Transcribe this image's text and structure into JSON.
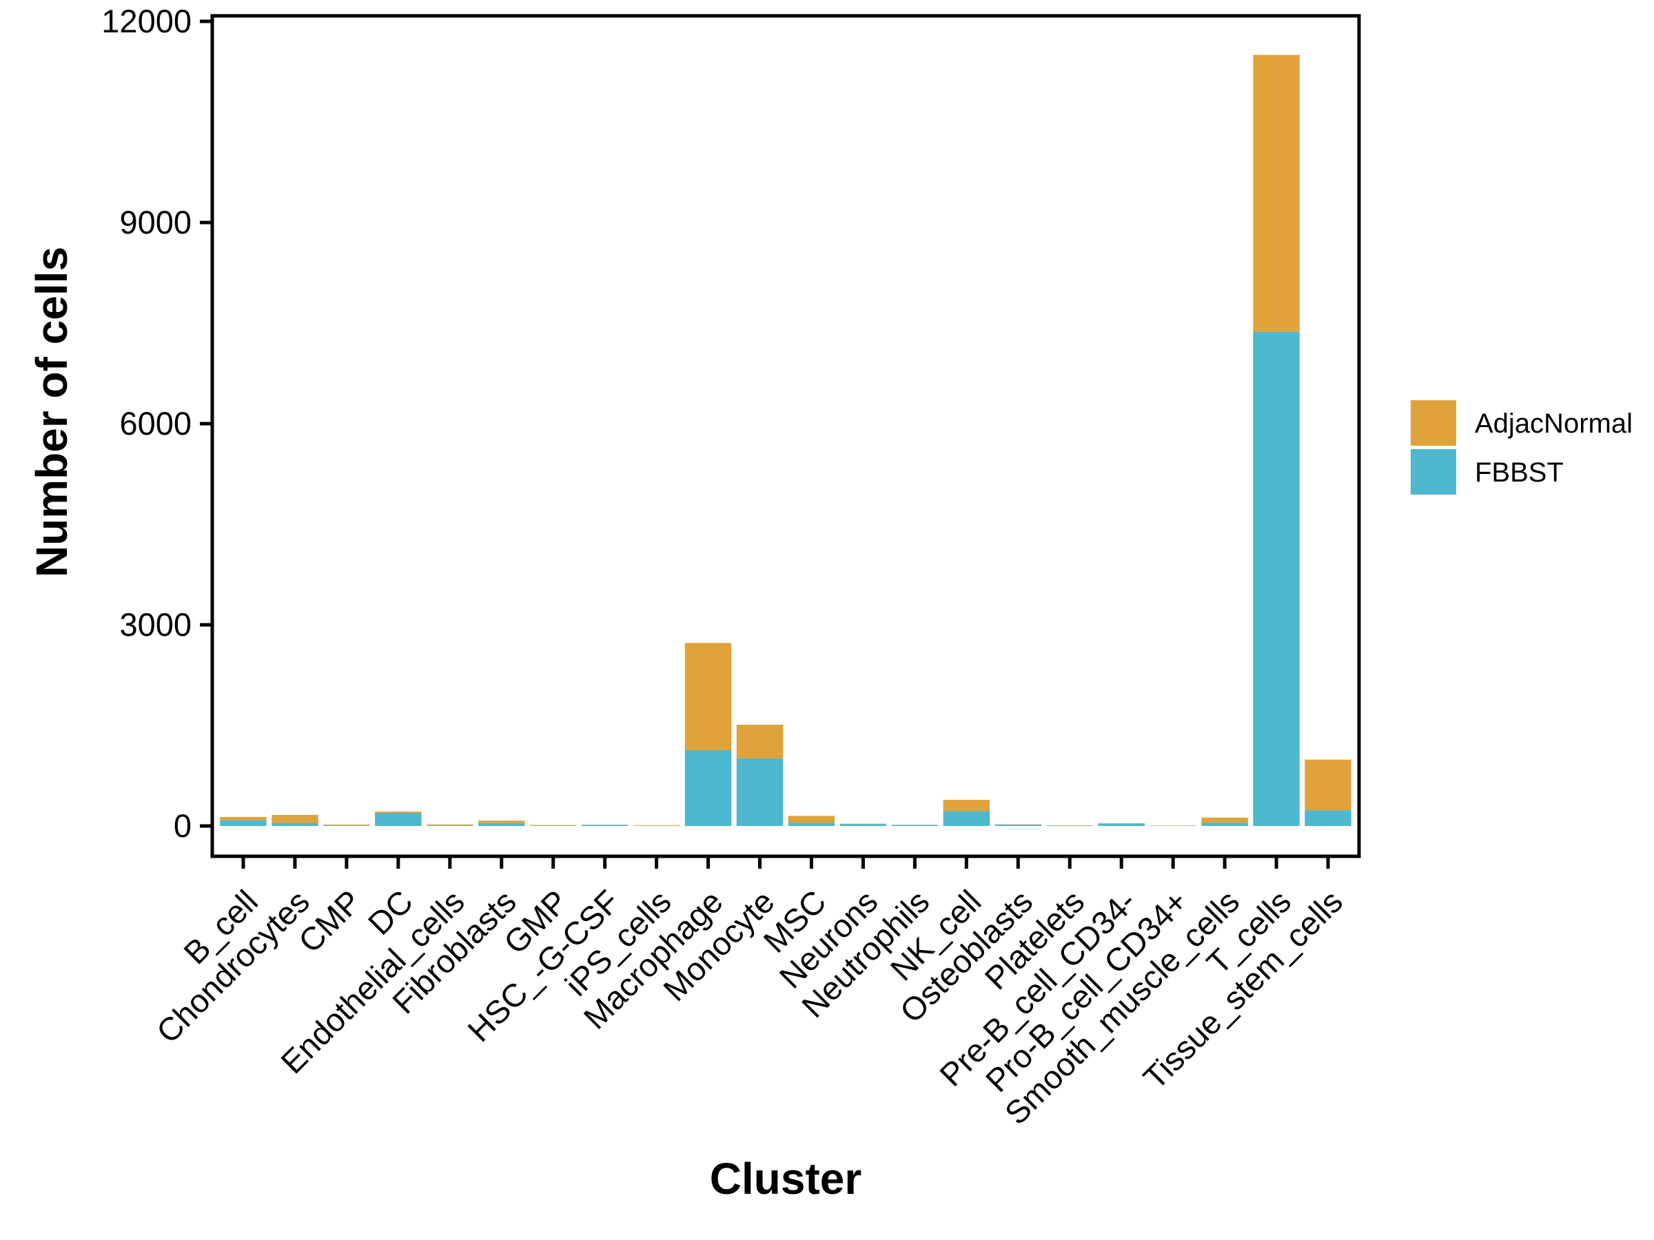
{
  "chart_data": {
    "type": "bar",
    "stacked": true,
    "title": "",
    "xlabel": "Cluster",
    "ylabel": "Number of cells",
    "ylim": [
      0,
      12000
    ],
    "yticks": [
      0,
      3000,
      6000,
      9000,
      12000
    ],
    "grid": false,
    "legend_position": "right",
    "categories": [
      "B_cell",
      "Chondrocytes",
      "CMP",
      "DC",
      "Endothelial_cells",
      "Fibroblasts",
      "GMP",
      "HSC_-G-CSF",
      "iPS_cells",
      "Macrophage",
      "Monocyte",
      "MSC",
      "Neurons",
      "Neutrophils",
      "NK_cell",
      "Osteoblasts",
      "Platelets",
      "Pre-B_cell_CD34-",
      "Pro-B_cell_CD34+",
      "Smooth_muscle_cells",
      "T_cells",
      "Tissue_stem_cells"
    ],
    "series": [
      {
        "name": "AdjacNormal",
        "color": "#E0A33B",
        "values": [
          50,
          120,
          14,
          25,
          15,
          38,
          9,
          3,
          10,
          1600,
          500,
          103,
          4,
          3,
          168,
          5,
          5,
          3,
          4,
          75,
          4130,
          755
        ]
      },
      {
        "name": "FBBST",
        "color": "#4DB8CE",
        "values": [
          85,
          45,
          8,
          190,
          8,
          42,
          6,
          17,
          2,
          1130,
          1010,
          48,
          30,
          15,
          222,
          20,
          5,
          38,
          4,
          50,
          7370,
          235
        ]
      }
    ],
    "axis_color": "#000000"
  }
}
